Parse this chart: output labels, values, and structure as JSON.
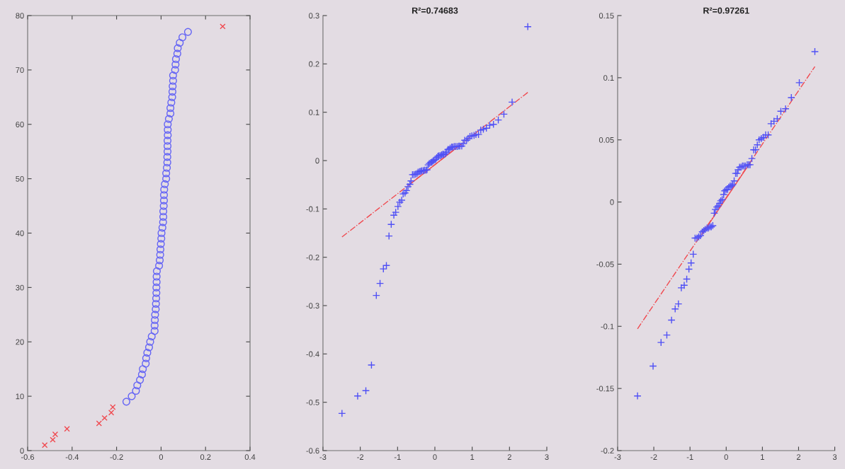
{
  "chart_data": [
    {
      "type": "scatter",
      "xlim": [
        -0.6,
        0.4
      ],
      "xticks": [
        -0.6,
        -0.4,
        -0.2,
        0,
        0.2,
        0.4
      ],
      "ylim": [
        0,
        80
      ],
      "yticks": [
        0,
        10,
        20,
        30,
        40,
        50,
        60,
        70,
        80
      ],
      "grid": false,
      "legend": false,
      "series": [
        {
          "marker": "circle",
          "color": "#6464f5",
          "x": [
            -0.156,
            -0.132,
            -0.113,
            -0.107,
            -0.095,
            -0.086,
            -0.082,
            -0.069,
            -0.067,
            -0.062,
            -0.054,
            -0.049,
            -0.042,
            -0.029,
            -0.029,
            -0.028,
            -0.027,
            -0.024,
            -0.023,
            -0.022,
            -0.021,
            -0.021,
            -0.02,
            -0.02,
            -0.019,
            -0.009,
            -0.006,
            -0.004,
            -0.003,
            -0.001,
            0.001,
            0.002,
            0.006,
            0.009,
            0.01,
            0.01,
            0.012,
            0.013,
            0.013,
            0.014,
            0.017,
            0.023,
            0.023,
            0.026,
            0.028,
            0.028,
            0.029,
            0.029,
            0.029,
            0.03,
            0.03,
            0.03,
            0.035,
            0.042,
            0.042,
            0.046,
            0.05,
            0.051,
            0.052,
            0.054,
            0.054,
            0.063,
            0.065,
            0.067,
            0.073,
            0.075,
            0.084,
            0.096,
            0.121
          ],
          "values": [
            9,
            10,
            11,
            12,
            13,
            14,
            15,
            16,
            17,
            18,
            19,
            20,
            21,
            22,
            23,
            24,
            25,
            26,
            27,
            28,
            29,
            30,
            31,
            32,
            33,
            34,
            35,
            36,
            37,
            38,
            39,
            40,
            41,
            42,
            43,
            44,
            45,
            46,
            47,
            48,
            49,
            50,
            51,
            52,
            53,
            54,
            55,
            56,
            57,
            58,
            59,
            60,
            61,
            62,
            63,
            64,
            65,
            66,
            67,
            68,
            69,
            70,
            71,
            72,
            73,
            74,
            75,
            76,
            77
          ]
        },
        {
          "marker": "cross",
          "color": "#f04a50",
          "x": [
            -0.523,
            -0.487,
            -0.476,
            -0.423,
            -0.279,
            -0.254,
            -0.224,
            -0.217,
            0.277
          ],
          "values": [
            1,
            2,
            3,
            4,
            5,
            6,
            7,
            8,
            78
          ]
        }
      ]
    },
    {
      "type": "scatter",
      "title": "R²=0.74683",
      "xlim": [
        -3,
        3
      ],
      "xticks": [
        -3,
        -2,
        -1,
        0,
        1,
        2,
        3
      ],
      "ylim": [
        -0.6,
        0.3
      ],
      "yticks": [
        -0.6,
        -0.5,
        -0.4,
        -0.3,
        -0.2,
        -0.1,
        0,
        0.1,
        0.2,
        0.3
      ],
      "grid": false,
      "legend": false,
      "series": [
        {
          "type": "line",
          "line_style": "dashed",
          "color": "#f04a50",
          "x": [
            -2.49,
            2.49
          ],
          "values": [
            -0.158,
            0.141
          ]
        },
        {
          "type": "line",
          "line_style": "solid",
          "color": "#f04a50",
          "x": [
            -0.67,
            0.67
          ],
          "values": [
            -0.049,
            0.032
          ]
        },
        {
          "marker": "plus",
          "color": "#5050f5",
          "x": [
            -2.49,
            -2.07,
            -1.85,
            -1.7,
            -1.57,
            -1.47,
            -1.38,
            -1.3,
            -1.23,
            -1.17,
            -1.1,
            -1.05,
            -0.99,
            -0.94,
            -0.89,
            -0.85,
            -0.8,
            -0.76,
            -0.72,
            -0.67,
            -0.64,
            -0.6,
            -0.56,
            -0.52,
            -0.48,
            -0.45,
            -0.41,
            -0.38,
            -0.35,
            -0.31,
            -0.28,
            -0.24,
            -0.21,
            -0.18,
            -0.15,
            -0.11,
            -0.08,
            -0.05,
            -0.02,
            0.02,
            0.05,
            0.08,
            0.11,
            0.15,
            0.18,
            0.21,
            0.24,
            0.28,
            0.31,
            0.35,
            0.38,
            0.41,
            0.45,
            0.48,
            0.52,
            0.56,
            0.6,
            0.64,
            0.67,
            0.72,
            0.76,
            0.8,
            0.85,
            0.89,
            0.94,
            0.99,
            1.05,
            1.1,
            1.17,
            1.23,
            1.3,
            1.38,
            1.47,
            1.57,
            1.7,
            1.85,
            2.07,
            2.49
          ],
          "values": [
            -0.523,
            -0.487,
            -0.476,
            -0.423,
            -0.279,
            -0.254,
            -0.224,
            -0.217,
            -0.156,
            -0.132,
            -0.113,
            -0.107,
            -0.095,
            -0.086,
            -0.082,
            -0.069,
            -0.067,
            -0.062,
            -0.054,
            -0.049,
            -0.042,
            -0.029,
            -0.029,
            -0.028,
            -0.027,
            -0.024,
            -0.023,
            -0.022,
            -0.021,
            -0.021,
            -0.02,
            -0.02,
            -0.019,
            -0.009,
            -0.006,
            -0.004,
            -0.003,
            -0.001,
            0.001,
            0.002,
            0.006,
            0.009,
            0.01,
            0.01,
            0.012,
            0.013,
            0.013,
            0.014,
            0.017,
            0.023,
            0.023,
            0.026,
            0.028,
            0.028,
            0.029,
            0.029,
            0.029,
            0.03,
            0.03,
            0.03,
            0.035,
            0.042,
            0.042,
            0.046,
            0.05,
            0.051,
            0.052,
            0.054,
            0.054,
            0.063,
            0.065,
            0.067,
            0.073,
            0.075,
            0.084,
            0.096,
            0.121,
            0.277
          ]
        }
      ]
    },
    {
      "type": "scatter",
      "title": "R²=0.97261",
      "xlim": [
        -3,
        3
      ],
      "xticks": [
        -3,
        -2,
        -1,
        0,
        1,
        2,
        3
      ],
      "ylim": [
        -0.2,
        0.15
      ],
      "yticks": [
        -0.2,
        -0.15,
        -0.1,
        -0.05,
        0,
        0.05,
        0.1,
        0.15
      ],
      "grid": false,
      "legend": false,
      "series": [
        {
          "type": "line",
          "line_style": "dashed",
          "color": "#f04a50",
          "x": [
            -2.45,
            2.45
          ],
          "values": [
            -0.102,
            0.109
          ]
        },
        {
          "type": "line",
          "line_style": "solid",
          "color": "#f04a50",
          "x": [
            -0.67,
            0.67
          ],
          "values": [
            -0.026,
            0.032
          ]
        },
        {
          "marker": "plus",
          "color": "#5050f5",
          "x": [
            -2.45,
            -2.02,
            -1.8,
            -1.64,
            -1.51,
            -1.41,
            -1.32,
            -1.24,
            -1.16,
            -1.09,
            -1.03,
            -0.97,
            -0.91,
            -0.86,
            -0.81,
            -0.76,
            -0.71,
            -0.66,
            -0.62,
            -0.58,
            -0.53,
            -0.49,
            -0.45,
            -0.41,
            -0.37,
            -0.33,
            -0.3,
            -0.26,
            -0.22,
            -0.18,
            -0.15,
            -0.11,
            -0.07,
            -0.04,
            0,
            0.04,
            0.07,
            0.11,
            0.15,
            0.18,
            0.22,
            0.26,
            0.3,
            0.33,
            0.37,
            0.41,
            0.45,
            0.49,
            0.53,
            0.58,
            0.62,
            0.66,
            0.71,
            0.76,
            0.81,
            0.86,
            0.91,
            0.97,
            1.03,
            1.09,
            1.16,
            1.24,
            1.32,
            1.41,
            1.51,
            1.64,
            1.8,
            2.02,
            2.45
          ],
          "values": [
            -0.156,
            -0.132,
            -0.113,
            -0.107,
            -0.095,
            -0.086,
            -0.082,
            -0.069,
            -0.067,
            -0.062,
            -0.054,
            -0.049,
            -0.042,
            -0.029,
            -0.029,
            -0.028,
            -0.027,
            -0.024,
            -0.023,
            -0.022,
            -0.021,
            -0.021,
            -0.02,
            -0.02,
            -0.019,
            -0.009,
            -0.006,
            -0.004,
            -0.003,
            -0.001,
            0.001,
            0.002,
            0.006,
            0.009,
            0.01,
            0.01,
            0.012,
            0.013,
            0.013,
            0.014,
            0.017,
            0.023,
            0.023,
            0.026,
            0.028,
            0.028,
            0.029,
            0.029,
            0.029,
            0.03,
            0.03,
            0.03,
            0.035,
            0.042,
            0.042,
            0.046,
            0.05,
            0.051,
            0.052,
            0.054,
            0.054,
            0.063,
            0.065,
            0.067,
            0.073,
            0.075,
            0.084,
            0.096,
            0.121
          ]
        }
      ]
    }
  ]
}
